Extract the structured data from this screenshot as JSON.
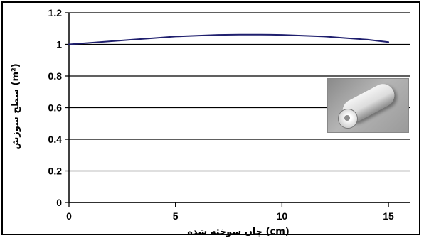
{
  "chart_data": {
    "type": "line",
    "xlabel": "جان سوخته شده (cm)",
    "ylabel": "سطح سوزش (m²)",
    "xlim": [
      0,
      16
    ],
    "ylim": [
      0,
      1.2
    ],
    "xticks": [
      "0",
      "5",
      "10",
      "15"
    ],
    "yticks": [
      "0",
      "0.2",
      "0.4",
      "0.6",
      "0.8",
      "1",
      "1.2"
    ],
    "grid": "horizontal",
    "series": [
      {
        "color": "#1f1f6e",
        "x": [
          0,
          1,
          2,
          3,
          4,
          5,
          6,
          7,
          8,
          9,
          10,
          11,
          12,
          13,
          14,
          15
        ],
        "y": [
          1.0,
          1.01,
          1.02,
          1.03,
          1.04,
          1.05,
          1.055,
          1.06,
          1.062,
          1.062,
          1.06,
          1.055,
          1.05,
          1.04,
          1.03,
          1.015
        ]
      }
    ],
    "inset": "grain-cylinder-icon"
  }
}
